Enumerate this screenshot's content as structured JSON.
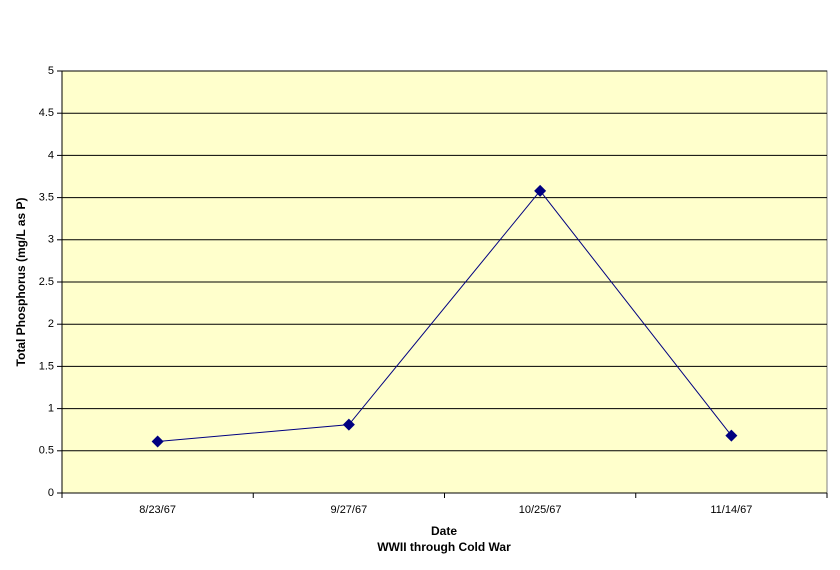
{
  "chart_data": {
    "type": "line",
    "y_label": "Total Phosphorus (mg/L as P)",
    "x_label": "Date",
    "x_sublabel": "WWII through Cold War",
    "categories": [
      "8/23/67",
      "9/27/67",
      "10/25/67",
      "11/14/67"
    ],
    "series": [
      {
        "name": "Total Phosphorus",
        "color": "#000080",
        "values": [
          0.61,
          0.81,
          3.58,
          0.68
        ]
      }
    ],
    "ylim": [
      0,
      5
    ],
    "yticks": [
      0,
      0.5,
      1,
      1.5,
      2,
      2.5,
      3,
      3.5,
      4,
      4.5,
      5
    ],
    "grid": true,
    "plot_background": "#ffffcc"
  }
}
